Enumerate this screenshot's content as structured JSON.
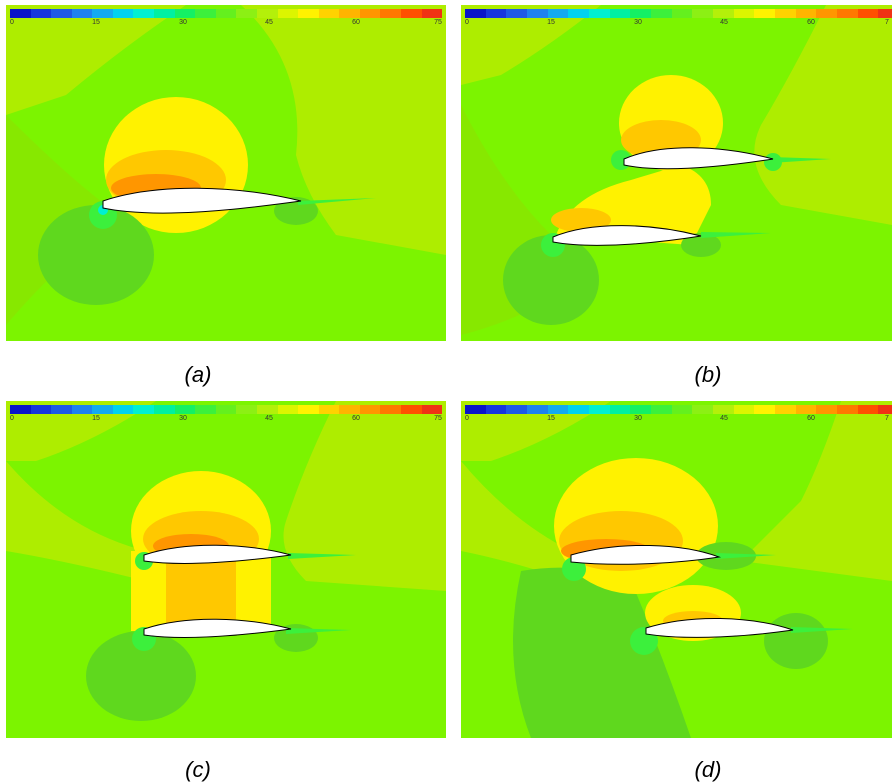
{
  "colorbar": {
    "ticks": [
      "0",
      "15",
      "30",
      "45",
      "60",
      "75"
    ],
    "colors": [
      "#0a14c8",
      "#1736dc",
      "#1e5ae6",
      "#1e82f0",
      "#14aaf0",
      "#00d2f0",
      "#00f0d2",
      "#00f0a0",
      "#14f064",
      "#3cf03c",
      "#64f01e",
      "#8cf014",
      "#b4f00a",
      "#dcf500",
      "#fff200",
      "#ffd200",
      "#ffb400",
      "#ff9600",
      "#ff7800",
      "#ff5000",
      "#f03214"
    ]
  },
  "panels": [
    {
      "caption": "(a)",
      "ticks_visible": [
        "0",
        "15",
        "30",
        "45",
        "60",
        "75"
      ]
    },
    {
      "caption": "(b)",
      "ticks_visible": [
        "0",
        "15",
        "30",
        "45",
        "60",
        "7"
      ]
    },
    {
      "caption": "(c)",
      "ticks_visible": [
        "0",
        "15",
        "30",
        "45",
        "60",
        "75"
      ]
    },
    {
      "caption": "(d)",
      "ticks_visible": [
        "0",
        "15",
        "30",
        "45",
        "60",
        "7"
      ]
    }
  ]
}
